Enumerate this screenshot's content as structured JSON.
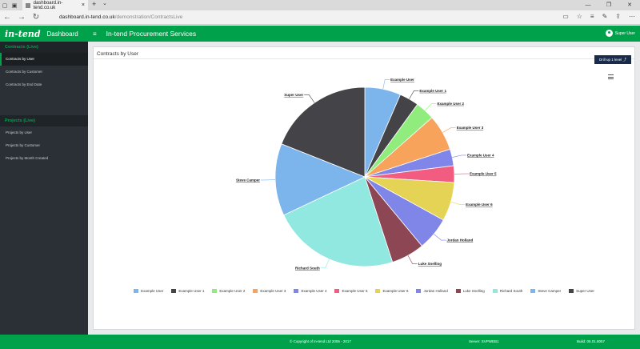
{
  "browser": {
    "tab_title": "dashboard.in-tend.co.uk",
    "url_host": "dashboard.in-tend.co.uk",
    "url_path": "/demonstration/ContractsLive"
  },
  "header": {
    "logo": "in-tend",
    "dashboard": "Dashboard",
    "title": "In-tend Procurement Services",
    "user": "Super User"
  },
  "sidebar": {
    "contracts_section": "Contracts (Live)",
    "contracts_items": [
      "Contracts by User",
      "Contracts by Customer",
      "Contracts by End Date"
    ],
    "projects_section": "Projects (Live)",
    "projects_items": [
      "Projects by User",
      "Projects by Customer",
      "Projects by Month Created"
    ]
  },
  "panel": {
    "title": "Contracts by User",
    "drill_label": "Drill up 1 level ⤴"
  },
  "chart_data": {
    "type": "pie",
    "categories": [
      "Example User",
      "Example User 1",
      "Example User 2",
      "Example User 3",
      "Example User 4",
      "Example User 5",
      "Example User 6",
      "Jordan Holland",
      "Luke Snelling",
      "Richard South",
      "Steve Camper",
      "Super User"
    ],
    "values": [
      6.5,
      3.5,
      3.5,
      6.5,
      3,
      3,
      7,
      6,
      6,
      23,
      13,
      19
    ],
    "colors": [
      "#7cb5ec",
      "#434348",
      "#90ed7d",
      "#f7a35c",
      "#8085e9",
      "#f15c80",
      "#e4d354",
      "#8085e8",
      "#8d4653",
      "#91e8e1",
      "#7cb5ec",
      "#434348"
    ],
    "legend_position": "bottom"
  },
  "footer": {
    "copyright": "© Copyright of In-tend Ltd 2006 - 2017",
    "server": "Server: SVPWEB1",
    "build": "Build: 05.01.8057"
  }
}
